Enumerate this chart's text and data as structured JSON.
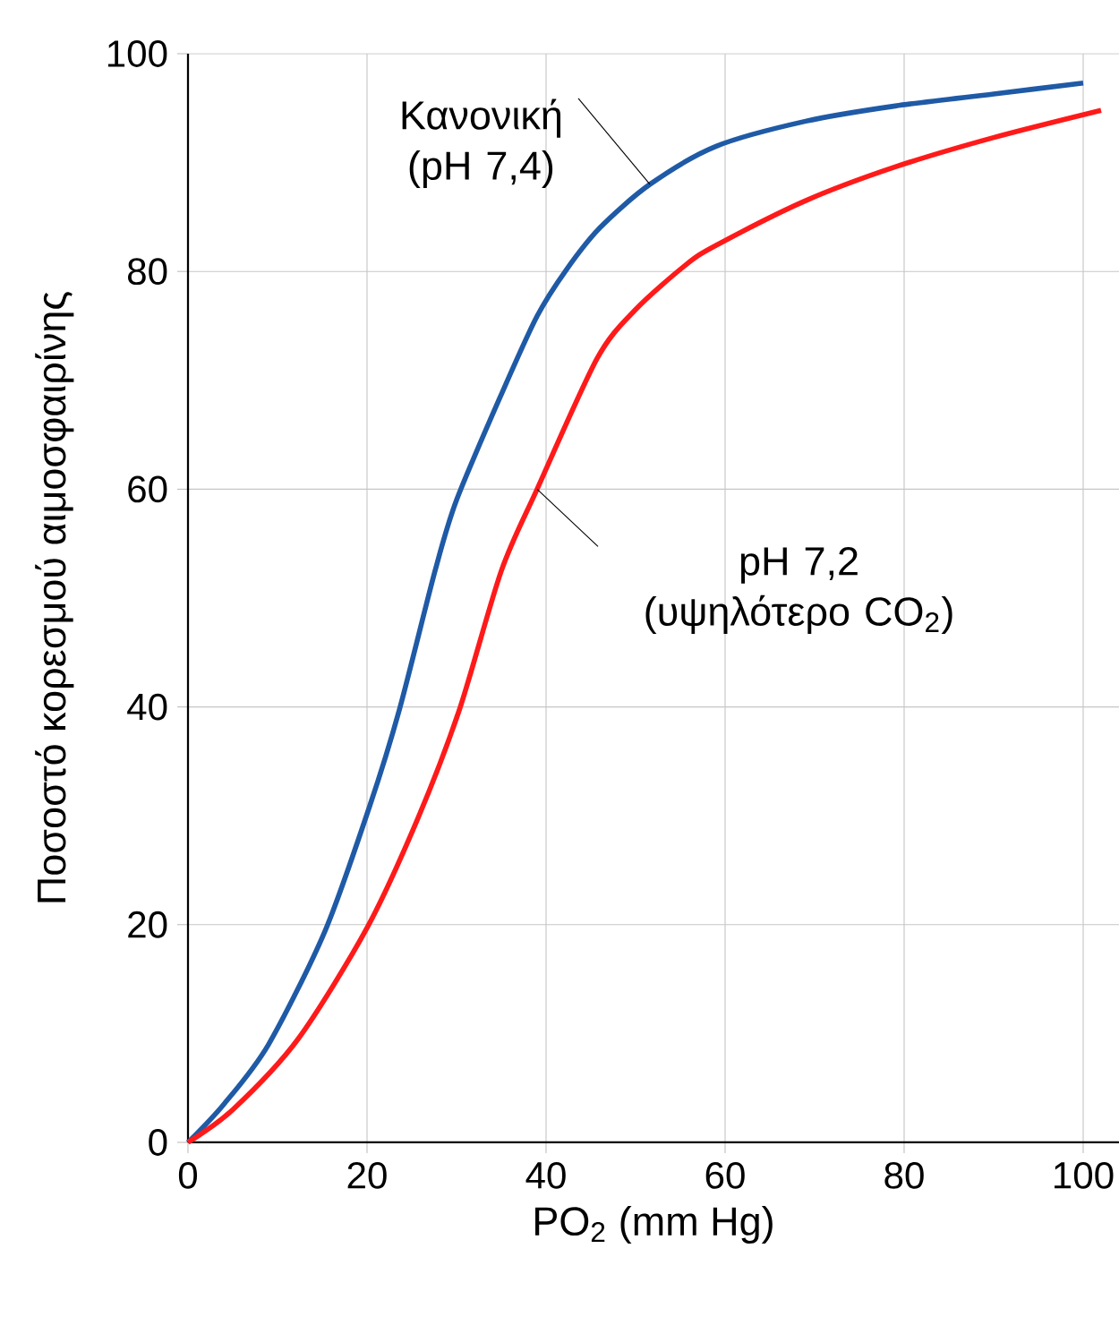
{
  "chart_data": {
    "type": "line",
    "xlabel": "PO$_{2}$ (mm Hg)",
    "ylabel": "Ποσοστό κορεσμού  αιμοσφαιρίνης",
    "xlim": [
      0,
      104
    ],
    "ylim": [
      0,
      100
    ],
    "xticks": [
      0,
      20,
      40,
      60,
      80,
      100
    ],
    "yticks": [
      0,
      20,
      40,
      60,
      80,
      100
    ],
    "grid": true,
    "series": [
      {
        "color": "#1f5aa6",
        "x": [
          0,
          4,
          9,
          15.3,
          20.3,
          23.6,
          27.6,
          30,
          35,
          39,
          42.3,
          46,
          51.6,
          59,
          69,
          79,
          90,
          100
        ],
        "values": [
          0,
          3.5,
          9,
          19.4,
          30.9,
          39.7,
          52.5,
          59,
          68.7,
          75.9,
          80.2,
          84,
          88,
          91.5,
          93.8,
          95.2,
          96.3,
          97.3
        ]
      },
      {
        "color": "#ff1a1a",
        "x": [
          0,
          5,
          12.3,
          20,
          25.7,
          30.3,
          35,
          39,
          45.7,
          50,
          55.6,
          59,
          69,
          79,
          90,
          102
        ],
        "values": [
          0,
          3,
          9.5,
          19.7,
          29.8,
          39.7,
          52.5,
          60,
          72,
          76.5,
          80.6,
          82.4,
          86.5,
          89.6,
          92.3,
          94.8
        ]
      }
    ],
    "annotations": [
      {
        "text": "Κανονική (pH 7,4)",
        "x": 51.6,
        "y": 88
      },
      {
        "text": "pH 7,2 (υψηλότερο CO$_{2}$)",
        "x": 39,
        "y": 60
      }
    ]
  }
}
